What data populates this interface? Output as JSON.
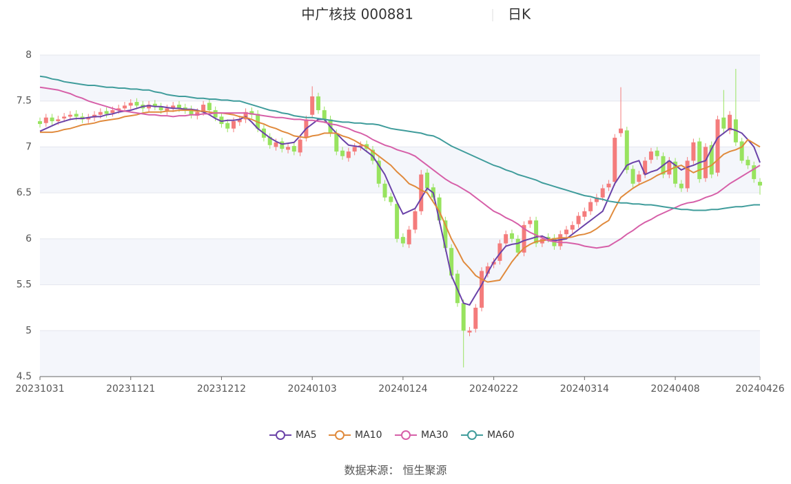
{
  "chart_data": {
    "type": "candlestick",
    "title": "中广核技 000881",
    "period": "日K",
    "categories": [
      "20231031",
      null,
      null,
      null,
      null,
      null,
      null,
      null,
      null,
      null,
      null,
      null,
      null,
      null,
      null,
      "20231121",
      null,
      null,
      null,
      null,
      null,
      null,
      null,
      null,
      null,
      null,
      null,
      null,
      null,
      null,
      "20231212",
      null,
      null,
      null,
      null,
      null,
      null,
      null,
      null,
      null,
      null,
      null,
      null,
      null,
      null,
      "20240103",
      null,
      null,
      null,
      null,
      null,
      null,
      null,
      null,
      null,
      null,
      null,
      null,
      null,
      null,
      "20240124",
      null,
      null,
      null,
      null,
      null,
      null,
      null,
      null,
      null,
      null,
      null,
      null,
      null,
      null,
      "20240222",
      null,
      null,
      null,
      null,
      null,
      null,
      null,
      null,
      null,
      null,
      null,
      null,
      null,
      null,
      "20240314",
      null,
      null,
      null,
      null,
      null,
      null,
      null,
      null,
      null,
      null,
      null,
      null,
      null,
      null,
      "20240408",
      null,
      null,
      null,
      null,
      null,
      null,
      null,
      null,
      null,
      null,
      null,
      null,
      null,
      "20240426"
    ],
    "open": [
      7.28,
      7.26,
      7.32,
      7.28,
      7.31,
      7.33,
      7.36,
      7.33,
      7.3,
      7.32,
      7.35,
      7.39,
      7.37,
      7.4,
      7.42,
      7.45,
      7.49,
      7.46,
      7.42,
      7.47,
      7.44,
      7.39,
      7.42,
      7.46,
      7.43,
      7.41,
      7.34,
      7.38,
      7.48,
      7.4,
      7.33,
      7.26,
      7.2,
      7.27,
      7.3,
      7.39,
      7.36,
      7.2,
      7.11,
      7.0,
      7.06,
      6.97,
      7.01,
      6.94,
      7.1,
      7.35,
      7.55,
      7.4,
      7.3,
      7.15,
      6.96,
      6.88,
      6.95,
      7.0,
      7.03,
      6.97,
      6.85,
      6.6,
      6.46,
      6.38,
      6.02,
      5.94,
      6.1,
      6.3,
      6.72,
      6.56,
      6.45,
      6.2,
      5.9,
      5.62,
      5.3,
      4.98,
      5.02,
      5.25,
      5.62,
      5.72,
      5.76,
      5.95,
      6.06,
      6.0,
      5.85,
      6.16,
      6.2,
      5.95,
      6.02,
      6.01,
      5.92,
      6.05,
      6.1,
      6.16,
      6.24,
      6.3,
      6.4,
      6.45,
      6.56,
      6.62,
      7.15,
      7.18,
      6.76,
      6.62,
      6.7,
      6.86,
      6.96,
      6.9,
      6.7,
      6.84,
      6.6,
      6.55,
      6.85,
      7.06,
      6.66,
      7.02,
      6.72,
      7.32,
      7.18,
      7.3,
      7.06,
      6.86,
      6.8,
      6.62
    ],
    "high": [
      7.32,
      7.36,
      7.36,
      7.34,
      7.37,
      7.39,
      7.4,
      7.37,
      7.36,
      7.39,
      7.42,
      7.43,
      7.44,
      7.46,
      7.49,
      7.52,
      7.53,
      7.5,
      7.5,
      7.51,
      7.48,
      7.46,
      7.49,
      7.5,
      7.47,
      7.45,
      7.42,
      7.5,
      7.52,
      7.44,
      7.37,
      7.3,
      7.32,
      7.34,
      7.42,
      7.43,
      7.4,
      7.24,
      7.15,
      7.09,
      7.1,
      7.04,
      7.05,
      7.12,
      7.34,
      7.66,
      7.59,
      7.44,
      7.34,
      7.19,
      7.0,
      6.99,
      7.04,
      7.06,
      7.07,
      7.01,
      6.89,
      6.64,
      6.5,
      6.42,
      6.06,
      6.14,
      6.34,
      6.75,
      6.76,
      6.6,
      6.49,
      6.24,
      5.94,
      5.66,
      5.34,
      5.04,
      5.29,
      5.69,
      5.74,
      5.79,
      5.99,
      6.09,
      6.1,
      6.04,
      6.19,
      6.24,
      6.24,
      6.04,
      6.06,
      6.05,
      6.09,
      6.14,
      6.19,
      6.29,
      6.34,
      6.44,
      6.49,
      6.59,
      6.64,
      7.14,
      7.65,
      7.22,
      6.8,
      6.74,
      6.89,
      6.99,
      7.0,
      6.94,
      6.89,
      6.88,
      6.64,
      6.89,
      7.09,
      7.1,
      7.04,
      7.06,
      7.34,
      7.62,
      7.39,
      7.85,
      7.1,
      6.9,
      6.84,
      6.66
    ],
    "low": [
      7.21,
      7.22,
      7.24,
      7.24,
      7.27,
      7.29,
      7.29,
      7.26,
      7.26,
      7.28,
      7.31,
      7.32,
      7.33,
      7.36,
      7.38,
      7.41,
      7.41,
      7.38,
      7.38,
      7.4,
      7.36,
      7.35,
      7.38,
      7.38,
      7.36,
      7.31,
      7.3,
      7.34,
      7.36,
      7.28,
      7.21,
      7.16,
      7.16,
      7.23,
      7.26,
      7.31,
      7.16,
      7.06,
      6.98,
      6.96,
      6.94,
      6.93,
      6.91,
      6.9,
      7.06,
      7.31,
      7.36,
      7.26,
      7.11,
      6.91,
      6.86,
      6.84,
      6.91,
      6.96,
      6.94,
      6.81,
      6.56,
      6.41,
      6.36,
      5.96,
      5.91,
      5.9,
      6.06,
      6.26,
      6.51,
      6.41,
      6.16,
      5.86,
      5.56,
      5.26,
      4.6,
      4.94,
      4.98,
      5.21,
      5.58,
      5.68,
      5.72,
      5.91,
      5.96,
      5.81,
      5.81,
      6.12,
      5.91,
      5.91,
      5.96,
      5.88,
      5.88,
      6.01,
      6.06,
      6.12,
      6.2,
      6.26,
      6.36,
      6.41,
      6.52,
      6.58,
      7.11,
      6.71,
      6.56,
      6.58,
      6.66,
      6.82,
      6.86,
      6.66,
      6.66,
      6.56,
      6.51,
      6.51,
      6.81,
      6.61,
      6.62,
      6.66,
      6.68,
      7.14,
      7.14,
      7.01,
      6.82,
      6.76,
      6.61,
      6.48
    ],
    "close": [
      7.25,
      7.32,
      7.28,
      7.3,
      7.33,
      7.35,
      7.33,
      7.3,
      7.32,
      7.35,
      7.38,
      7.36,
      7.4,
      7.42,
      7.45,
      7.48,
      7.45,
      7.42,
      7.46,
      7.44,
      7.4,
      7.42,
      7.45,
      7.42,
      7.4,
      7.35,
      7.38,
      7.46,
      7.4,
      7.32,
      7.25,
      7.2,
      7.28,
      7.3,
      7.38,
      7.35,
      7.2,
      7.1,
      7.02,
      7.05,
      6.98,
      7.0,
      6.95,
      7.08,
      7.3,
      7.55,
      7.4,
      7.3,
      7.15,
      6.95,
      6.9,
      6.95,
      7.0,
      7.02,
      6.98,
      6.85,
      6.6,
      6.45,
      6.4,
      6.0,
      5.95,
      6.1,
      6.3,
      6.7,
      6.55,
      6.45,
      6.2,
      5.9,
      5.6,
      5.3,
      5.0,
      5.0,
      5.25,
      5.65,
      5.7,
      5.75,
      5.95,
      6.05,
      6.0,
      5.85,
      6.15,
      6.2,
      5.95,
      6.0,
      6.0,
      5.92,
      6.05,
      6.1,
      6.15,
      6.25,
      6.3,
      6.4,
      6.45,
      6.55,
      6.6,
      7.1,
      7.2,
      6.75,
      6.6,
      6.7,
      6.85,
      6.95,
      6.9,
      6.7,
      6.85,
      6.6,
      6.55,
      6.85,
      7.05,
      6.65,
      7.0,
      6.7,
      7.3,
      7.2,
      7.35,
      7.05,
      6.85,
      6.8,
      6.65,
      6.58
    ],
    "up_color": "#f47c7c",
    "down_color": "#98e35f",
    "series": [
      {
        "name": "MA5",
        "color": "#6a42a8",
        "values": [
          7.17,
          7.2,
          7.23,
          7.26,
          7.28,
          7.3,
          7.31,
          7.31,
          7.32,
          7.33,
          7.33,
          7.35,
          7.36,
          7.38,
          7.39,
          7.4,
          7.42,
          7.44,
          7.45,
          7.44,
          7.44,
          7.43,
          7.42,
          7.42,
          7.41,
          7.41,
          7.4,
          7.38,
          7.35,
          7.31,
          7.28,
          7.29,
          7.29,
          7.3,
          7.33,
          7.27,
          7.2,
          7.15,
          7.1,
          7.06,
          7.03,
          7.04,
          7.05,
          7.12,
          7.2,
          7.25,
          7.3,
          7.3,
          7.22,
          7.15,
          7.08,
          7.02,
          7.01,
          7.0,
          6.95,
          6.9,
          6.8,
          6.7,
          6.55,
          6.4,
          6.27,
          6.3,
          6.33,
          6.44,
          6.55,
          6.5,
          6.2,
          5.9,
          5.6,
          5.45,
          5.3,
          5.28,
          5.39,
          5.5,
          5.63,
          5.75,
          5.84,
          5.92,
          5.94,
          5.95,
          5.98,
          6.0,
          6.02,
          6.03,
          6.0,
          5.98,
          5.99,
          6.0,
          6.05,
          6.1,
          6.15,
          6.2,
          6.25,
          6.3,
          6.45,
          6.6,
          6.7,
          6.8,
          6.83,
          6.85,
          6.7,
          6.73,
          6.75,
          6.8,
          6.85,
          6.8,
          6.75,
          6.78,
          6.8,
          6.83,
          6.85,
          6.98,
          7.1,
          7.15,
          7.2,
          7.18,
          7.15,
          7.08,
          7.0,
          6.83
        ]
      },
      {
        "name": "MA10",
        "color": "#e08a3c",
        "values": [
          7.16,
          7.16,
          7.16,
          7.17,
          7.19,
          7.2,
          7.22,
          7.24,
          7.25,
          7.26,
          7.28,
          7.29,
          7.3,
          7.31,
          7.33,
          7.34,
          7.35,
          7.37,
          7.38,
          7.38,
          7.38,
          7.39,
          7.39,
          7.4,
          7.4,
          7.4,
          7.39,
          7.39,
          7.38,
          7.37,
          7.37,
          7.36,
          7.35,
          7.33,
          7.32,
          7.3,
          7.27,
          7.25,
          7.22,
          7.2,
          7.17,
          7.15,
          7.12,
          7.11,
          7.1,
          7.12,
          7.13,
          7.15,
          7.15,
          7.15,
          7.12,
          7.1,
          7.07,
          7.03,
          7.0,
          6.95,
          6.9,
          6.85,
          6.8,
          6.73,
          6.67,
          6.6,
          6.57,
          6.53,
          6.5,
          6.4,
          6.3,
          6.15,
          6.0,
          5.88,
          5.75,
          5.68,
          5.6,
          5.56,
          5.53,
          5.54,
          5.55,
          5.65,
          5.75,
          5.83,
          5.9,
          5.94,
          5.97,
          5.98,
          5.99,
          6.0,
          6.01,
          6.01,
          6.02,
          6.04,
          6.05,
          6.07,
          6.11,
          6.16,
          6.2,
          6.33,
          6.45,
          6.5,
          6.55,
          6.59,
          6.62,
          6.65,
          6.69,
          6.72,
          6.75,
          6.78,
          6.8,
          6.76,
          6.72,
          6.75,
          6.77,
          6.8,
          6.86,
          6.92,
          6.95,
          6.97,
          7.0,
          7.08,
          7.04,
          7.0
        ]
      },
      {
        "name": "MA30",
        "color": "#d65fa8",
        "values": [
          7.65,
          7.64,
          7.63,
          7.62,
          7.6,
          7.58,
          7.55,
          7.53,
          7.5,
          7.48,
          7.46,
          7.44,
          7.42,
          7.4,
          7.39,
          7.38,
          7.37,
          7.36,
          7.35,
          7.35,
          7.34,
          7.34,
          7.33,
          7.34,
          7.34,
          7.35,
          7.35,
          7.36,
          7.36,
          7.37,
          7.37,
          7.37,
          7.37,
          7.37,
          7.37,
          7.36,
          7.35,
          7.34,
          7.33,
          7.32,
          7.32,
          7.31,
          7.3,
          7.3,
          7.29,
          7.29,
          7.28,
          7.27,
          7.25,
          7.24,
          7.22,
          7.2,
          7.17,
          7.15,
          7.12,
          7.08,
          7.05,
          7.02,
          7.0,
          6.97,
          6.95,
          6.93,
          6.9,
          6.85,
          6.8,
          6.75,
          6.7,
          6.65,
          6.61,
          6.58,
          6.54,
          6.5,
          6.45,
          6.4,
          6.35,
          6.3,
          6.27,
          6.23,
          6.2,
          6.16,
          6.11,
          6.07,
          6.04,
          6.01,
          5.98,
          5.97,
          5.96,
          5.96,
          5.95,
          5.94,
          5.92,
          5.91,
          5.9,
          5.91,
          5.92,
          5.96,
          6.0,
          6.05,
          6.09,
          6.14,
          6.18,
          6.21,
          6.25,
          6.28,
          6.31,
          6.34,
          6.37,
          6.39,
          6.4,
          6.42,
          6.45,
          6.47,
          6.5,
          6.55,
          6.6,
          6.64,
          6.68,
          6.72,
          6.76,
          6.8
        ]
      },
      {
        "name": "MA60",
        "color": "#3f9c9b",
        "values": [
          7.77,
          7.76,
          7.74,
          7.73,
          7.71,
          7.7,
          7.69,
          7.68,
          7.67,
          7.67,
          7.66,
          7.65,
          7.65,
          7.64,
          7.64,
          7.63,
          7.63,
          7.62,
          7.62,
          7.6,
          7.59,
          7.57,
          7.56,
          7.55,
          7.55,
          7.54,
          7.53,
          7.53,
          7.52,
          7.52,
          7.51,
          7.51,
          7.5,
          7.5,
          7.48,
          7.46,
          7.44,
          7.42,
          7.4,
          7.39,
          7.37,
          7.36,
          7.34,
          7.33,
          7.32,
          7.32,
          7.31,
          7.3,
          7.29,
          7.28,
          7.27,
          7.27,
          7.26,
          7.26,
          7.25,
          7.25,
          7.24,
          7.22,
          7.2,
          7.19,
          7.18,
          7.17,
          7.16,
          7.15,
          7.13,
          7.12,
          7.09,
          7.05,
          7.01,
          6.98,
          6.95,
          6.92,
          6.89,
          6.86,
          6.83,
          6.8,
          6.78,
          6.75,
          6.73,
          6.7,
          6.68,
          6.66,
          6.64,
          6.61,
          6.59,
          6.57,
          6.55,
          6.53,
          6.51,
          6.49,
          6.47,
          6.46,
          6.44,
          6.43,
          6.41,
          6.4,
          6.39,
          6.39,
          6.38,
          6.38,
          6.37,
          6.37,
          6.36,
          6.35,
          6.34,
          6.33,
          6.32,
          6.32,
          6.31,
          6.31,
          6.31,
          6.32,
          6.32,
          6.33,
          6.34,
          6.35,
          6.35,
          6.36,
          6.37,
          6.37
        ]
      }
    ],
    "ylim": [
      4.5,
      8
    ],
    "yticks": [
      4.5,
      5,
      5.5,
      6,
      6.5,
      7,
      7.5,
      8
    ],
    "grid": true,
    "source": "数据来源： 恒生聚源"
  }
}
